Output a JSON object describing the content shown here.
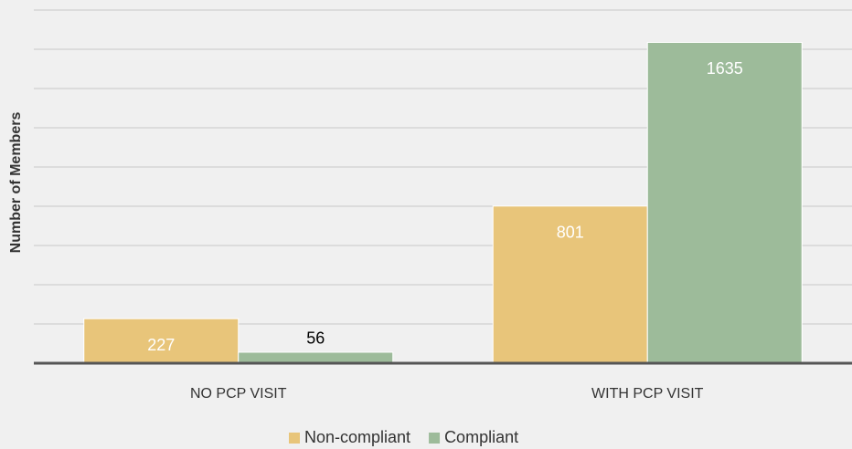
{
  "chart_data": {
    "type": "bar",
    "y_label": "Number of Members",
    "categories": [
      "NO PCP VISIT",
      "WITH PCP VISIT"
    ],
    "series": [
      {
        "name": "Non-compliant",
        "color": "#e8c57a",
        "values": [
          227,
          801
        ]
      },
      {
        "name": "Compliant",
        "color": "#9dbb9a",
        "values": [
          56,
          1635
        ]
      }
    ],
    "ylim": [
      0,
      1800
    ],
    "yticks": [
      0,
      200,
      400,
      600,
      800,
      1000,
      1200,
      1400,
      1600,
      1800
    ],
    "grid": true,
    "legend": "bottom"
  }
}
